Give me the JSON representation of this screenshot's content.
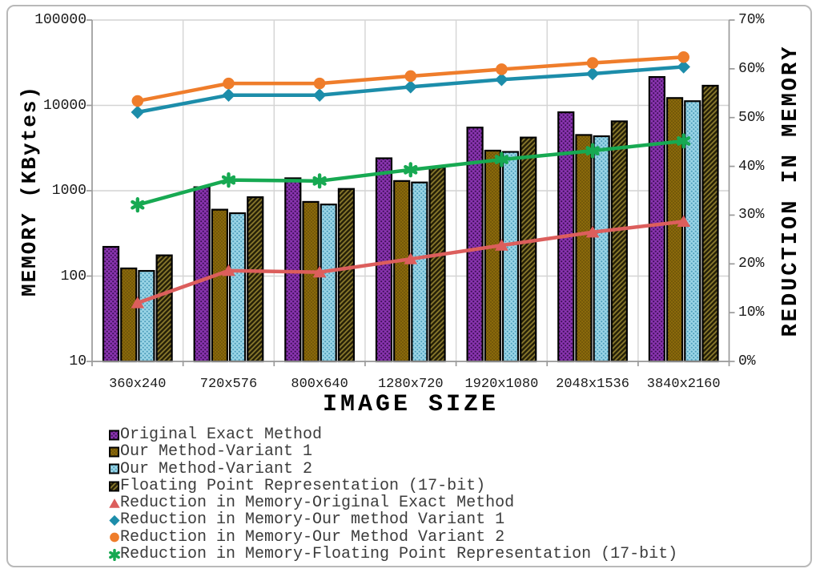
{
  "chart_data": {
    "type": "combo-bar-line",
    "xlabel": "IMAGE SIZE",
    "ylabel_left": "MEMORY (KBytes)",
    "ylabel_right": "REDUCTION IN MEMORY",
    "x_categories": [
      "360x240",
      "720x576",
      "800x640",
      "1280x720",
      "1920x1080",
      "2048x1536",
      "3840x2160"
    ],
    "left_axis": {
      "scale": "log",
      "min": 10,
      "max": 100000,
      "tick_values": [
        10,
        100,
        1000,
        10000,
        100000
      ],
      "tick_labels": [
        "10",
        "100",
        "1000",
        "10000",
        "100000"
      ]
    },
    "right_axis": {
      "scale": "linear",
      "min": 0,
      "max": 70,
      "tick_values": [
        0,
        10,
        20,
        30,
        40,
        50,
        60,
        70
      ],
      "tick_labels": [
        "0%",
        "10%",
        "20%",
        "30%",
        "40%",
        "50%",
        "60%",
        "70%"
      ]
    },
    "grid": "on",
    "legend_position": "bottom-left",
    "bar_series": [
      {
        "name": "Original Exact Method",
        "fill": "#8A34B0",
        "accent": "#3F1058",
        "pattern": "dots",
        "values": [
          220,
          1100,
          1400,
          2400,
          5500,
          8300,
          21500
        ]
      },
      {
        "name": "Our Method-Variant 1",
        "fill": "#8A690B",
        "accent": "#5A4406",
        "pattern": "dots-fine",
        "values": [
          123,
          600,
          740,
          1300,
          2950,
          4500,
          12200
        ]
      },
      {
        "name": "Our Method-Variant 2",
        "fill": "#9CD6E7",
        "accent": "#4F9FBD",
        "pattern": "dots",
        "values": [
          115,
          545,
          690,
          1250,
          2850,
          4350,
          11200
        ]
      },
      {
        "name": "Floating Point Representation (17-bit)",
        "fill": "#272108",
        "accent": "#8A7A2D",
        "pattern": "hatch",
        "values": [
          175,
          840,
          1050,
          1870,
          4200,
          6500,
          17000
        ]
      }
    ],
    "line_series": [
      {
        "name": "Reduction in Memory-Original Exact Method",
        "color": "#DC5E5C",
        "marker": "triangle",
        "values": [
          12,
          18.6,
          18.3,
          21,
          23.8,
          26.5,
          28.7
        ]
      },
      {
        "name": "Reduction in Memory-Our method Variant 1",
        "color": "#1C8DAA",
        "marker": "diamond",
        "values": [
          51.1,
          54.6,
          54.6,
          56.3,
          57.8,
          59,
          60.4
        ]
      },
      {
        "name": "Reduction in Memory-Our Method Variant 2",
        "color": "#EF7D2B",
        "marker": "circle",
        "values": [
          53.4,
          57,
          57,
          58.5,
          59.9,
          61.2,
          62.4
        ]
      },
      {
        "name": "Reduction in Memory-Floating Point Representation (17-bit)",
        "color": "#17A952",
        "marker": "star",
        "values": [
          32.1,
          37.2,
          37,
          39.3,
          41.4,
          43.2,
          45.2
        ]
      }
    ]
  },
  "legend": {
    "items": [
      {
        "label": "Original Exact Method",
        "ref_type": "bar",
        "ref_index": 0
      },
      {
        "label": "Our Method-Variant 1",
        "ref_type": "bar",
        "ref_index": 1
      },
      {
        "label": "Our Method-Variant 2",
        "ref_type": "bar",
        "ref_index": 2
      },
      {
        "label": "Floating Point Representation (17-bit)",
        "ref_type": "bar",
        "ref_index": 3
      },
      {
        "label": "Reduction in Memory-Original Exact Method",
        "ref_type": "line",
        "ref_index": 0
      },
      {
        "label": "Reduction in Memory-Our method Variant 1",
        "ref_type": "line",
        "ref_index": 1
      },
      {
        "label": "Reduction in Memory-Our Method Variant 2",
        "ref_type": "line",
        "ref_index": 2
      },
      {
        "label": "Reduction in Memory-Floating Point Representation (17-bit)",
        "ref_type": "line",
        "ref_index": 3
      }
    ]
  },
  "colors": {
    "gridline": "#D4D4D4",
    "axis": "#9A9A9A",
    "bar_outline": "#000000"
  }
}
